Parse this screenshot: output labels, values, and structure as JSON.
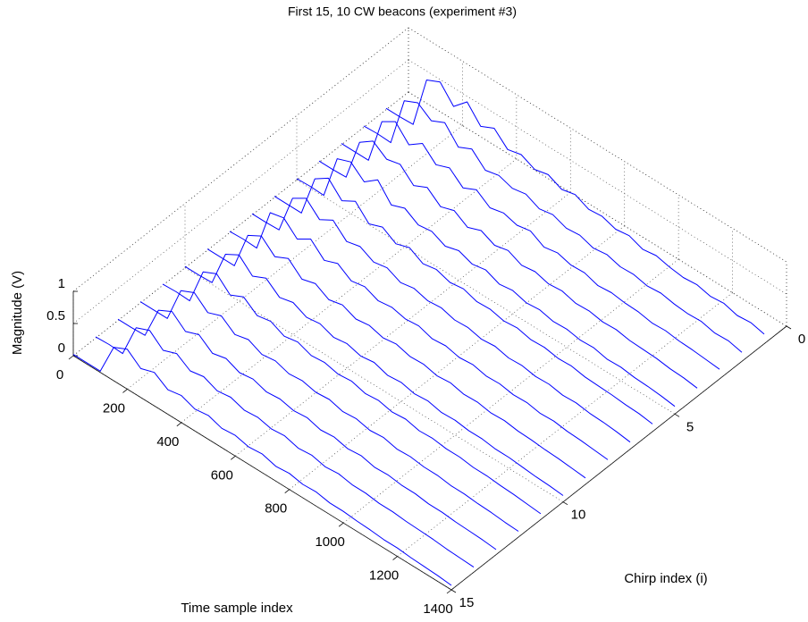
{
  "chart_data": {
    "type": "waterfall3d",
    "title": "First 15, 10 CW beacons (experiment #3)",
    "xlabel": "Time sample index",
    "ylabel": "Chirp index (i)",
    "zlabel": "Magnitude (V)",
    "color": "#0000ff",
    "xlim": [
      0,
      1400
    ],
    "xticks": [
      0,
      200,
      400,
      600,
      800,
      1000,
      1200,
      1400
    ],
    "ylim": [
      0,
      15
    ],
    "yticks": [
      0,
      5,
      10,
      15
    ],
    "zlim": [
      0,
      1
    ],
    "zticks": [
      0,
      0.5,
      1
    ],
    "grid": true,
    "x": [
      0,
      50,
      100,
      150,
      200,
      250,
      300,
      350,
      400,
      450,
      500,
      550,
      600,
      650,
      700,
      750,
      800,
      850,
      900,
      950,
      1000,
      1050,
      1100,
      1150,
      1200,
      1250,
      1300,
      1350,
      1400
    ],
    "series": [
      {
        "chirp": 1,
        "values": [
          0.02,
          0.02,
          0.03,
          0.85,
          0.95,
          0.7,
          0.9,
          0.65,
          0.75,
          0.55,
          0.6,
          0.5,
          0.55,
          0.45,
          0.5,
          0.4,
          0.42,
          0.35,
          0.38,
          0.3,
          0.33,
          0.28,
          0.25,
          0.27,
          0.22,
          0.24,
          0.18,
          0.2,
          0.15
        ]
      },
      {
        "chirp": 2,
        "values": [
          0.02,
          0.03,
          0.02,
          0.8,
          0.9,
          0.75,
          0.85,
          0.6,
          0.7,
          0.5,
          0.55,
          0.48,
          0.52,
          0.42,
          0.46,
          0.38,
          0.4,
          0.33,
          0.36,
          0.3,
          0.31,
          0.26,
          0.28,
          0.24,
          0.22,
          0.23,
          0.18,
          0.19,
          0.14
        ]
      },
      {
        "chirp": 3,
        "values": [
          0.02,
          0.02,
          0.02,
          0.75,
          0.88,
          0.65,
          0.8,
          0.6,
          0.68,
          0.5,
          0.6,
          0.45,
          0.5,
          0.44,
          0.48,
          0.36,
          0.4,
          0.34,
          0.35,
          0.28,
          0.3,
          0.27,
          0.26,
          0.22,
          0.23,
          0.2,
          0.19,
          0.17,
          0.15
        ]
      },
      {
        "chirp": 4,
        "values": [
          0.02,
          0.02,
          0.03,
          0.7,
          0.85,
          0.7,
          0.75,
          0.55,
          0.65,
          0.48,
          0.55,
          0.42,
          0.5,
          0.4,
          0.45,
          0.35,
          0.38,
          0.32,
          0.34,
          0.28,
          0.29,
          0.25,
          0.26,
          0.22,
          0.21,
          0.2,
          0.17,
          0.16,
          0.13
        ]
      },
      {
        "chirp": 5,
        "values": [
          0.02,
          0.03,
          0.02,
          0.72,
          0.8,
          0.62,
          0.78,
          0.52,
          0.6,
          0.47,
          0.5,
          0.4,
          0.46,
          0.38,
          0.42,
          0.33,
          0.36,
          0.3,
          0.32,
          0.27,
          0.28,
          0.24,
          0.25,
          0.2,
          0.21,
          0.18,
          0.17,
          0.15,
          0.12
        ]
      },
      {
        "chirp": 6,
        "values": [
          0.02,
          0.02,
          0.02,
          0.68,
          0.82,
          0.6,
          0.72,
          0.5,
          0.58,
          0.45,
          0.52,
          0.4,
          0.44,
          0.37,
          0.4,
          0.33,
          0.34,
          0.29,
          0.31,
          0.26,
          0.27,
          0.23,
          0.24,
          0.2,
          0.19,
          0.18,
          0.16,
          0.15,
          0.12
        ]
      },
      {
        "chirp": 7,
        "values": [
          0.02,
          0.02,
          0.03,
          0.65,
          0.78,
          0.58,
          0.7,
          0.5,
          0.55,
          0.44,
          0.48,
          0.38,
          0.42,
          0.36,
          0.38,
          0.32,
          0.33,
          0.28,
          0.3,
          0.25,
          0.26,
          0.22,
          0.23,
          0.19,
          0.2,
          0.17,
          0.16,
          0.14,
          0.11
        ]
      },
      {
        "chirp": 8,
        "values": [
          0.02,
          0.03,
          0.02,
          0.7,
          0.75,
          0.55,
          0.68,
          0.48,
          0.56,
          0.42,
          0.46,
          0.37,
          0.4,
          0.35,
          0.37,
          0.3,
          0.32,
          0.27,
          0.29,
          0.24,
          0.25,
          0.21,
          0.22,
          0.18,
          0.19,
          0.16,
          0.15,
          0.13,
          0.11
        ]
      },
      {
        "chirp": 9,
        "values": [
          0.02,
          0.02,
          0.02,
          0.62,
          0.74,
          0.55,
          0.65,
          0.46,
          0.52,
          0.4,
          0.45,
          0.36,
          0.39,
          0.33,
          0.36,
          0.3,
          0.31,
          0.26,
          0.28,
          0.23,
          0.24,
          0.2,
          0.21,
          0.18,
          0.17,
          0.15,
          0.14,
          0.12,
          0.1
        ]
      },
      {
        "chirp": 10,
        "values": [
          0.02,
          0.02,
          0.03,
          0.6,
          0.72,
          0.52,
          0.62,
          0.45,
          0.5,
          0.4,
          0.43,
          0.35,
          0.38,
          0.32,
          0.35,
          0.28,
          0.3,
          0.25,
          0.27,
          0.22,
          0.23,
          0.2,
          0.2,
          0.17,
          0.17,
          0.15,
          0.13,
          0.12,
          0.1
        ]
      },
      {
        "chirp": 11,
        "values": [
          0.02,
          0.03,
          0.02,
          0.6,
          0.7,
          0.5,
          0.6,
          0.44,
          0.48,
          0.38,
          0.42,
          0.34,
          0.36,
          0.31,
          0.33,
          0.27,
          0.29,
          0.24,
          0.26,
          0.21,
          0.22,
          0.19,
          0.19,
          0.16,
          0.16,
          0.14,
          0.13,
          0.11,
          0.09
        ]
      },
      {
        "chirp": 12,
        "values": [
          0.02,
          0.02,
          0.02,
          0.58,
          0.68,
          0.5,
          0.58,
          0.42,
          0.47,
          0.37,
          0.4,
          0.33,
          0.35,
          0.3,
          0.32,
          0.26,
          0.28,
          0.23,
          0.25,
          0.2,
          0.21,
          0.18,
          0.18,
          0.15,
          0.15,
          0.13,
          0.12,
          0.1,
          0.09
        ]
      },
      {
        "chirp": 13,
        "values": [
          0.02,
          0.02,
          0.03,
          0.55,
          0.66,
          0.48,
          0.56,
          0.4,
          0.45,
          0.36,
          0.39,
          0.32,
          0.34,
          0.29,
          0.31,
          0.25,
          0.27,
          0.22,
          0.24,
          0.19,
          0.2,
          0.17,
          0.17,
          0.14,
          0.14,
          0.12,
          0.11,
          0.1,
          0.08
        ]
      },
      {
        "chirp": 14,
        "values": [
          0.02,
          0.03,
          0.02,
          0.55,
          0.64,
          0.46,
          0.54,
          0.4,
          0.44,
          0.35,
          0.38,
          0.31,
          0.33,
          0.28,
          0.3,
          0.24,
          0.26,
          0.21,
          0.23,
          0.19,
          0.19,
          0.16,
          0.16,
          0.14,
          0.13,
          0.12,
          0.1,
          0.09,
          0.08
        ]
      },
      {
        "chirp": 15,
        "values": [
          0.02,
          0.02,
          0.02,
          0.52,
          0.62,
          0.45,
          0.52,
          0.38,
          0.42,
          0.34,
          0.37,
          0.3,
          0.32,
          0.27,
          0.29,
          0.23,
          0.25,
          0.21,
          0.22,
          0.18,
          0.18,
          0.16,
          0.15,
          0.13,
          0.13,
          0.11,
          0.1,
          0.09,
          0.07
        ]
      }
    ]
  }
}
